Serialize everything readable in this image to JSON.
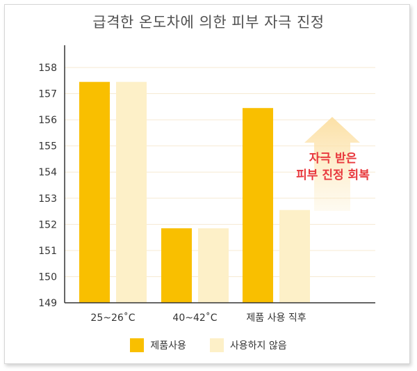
{
  "chart_data": {
    "type": "bar",
    "title": "급격한 온도차에 의한 피부 자극 진정",
    "categories": [
      "25~26˚C",
      "40~42˚C",
      "제품 사용 직후"
    ],
    "series": [
      {
        "name": "제품사용",
        "color": "#f9bf00",
        "values": [
          157.45,
          151.85,
          156.45
        ]
      },
      {
        "name": "사용하지 않음",
        "color": "#fdf0c8",
        "values": [
          157.45,
          151.85,
          152.55
        ]
      }
    ],
    "ylim": [
      149,
      158
    ],
    "yticks": [
      149,
      150,
      151,
      152,
      153,
      154,
      155,
      156,
      157,
      158
    ],
    "grid": true,
    "annotation": {
      "lines": [
        "자극 받은",
        "피부 진정 회복"
      ],
      "color": "#e8383d"
    },
    "legend_position": "bottom"
  }
}
